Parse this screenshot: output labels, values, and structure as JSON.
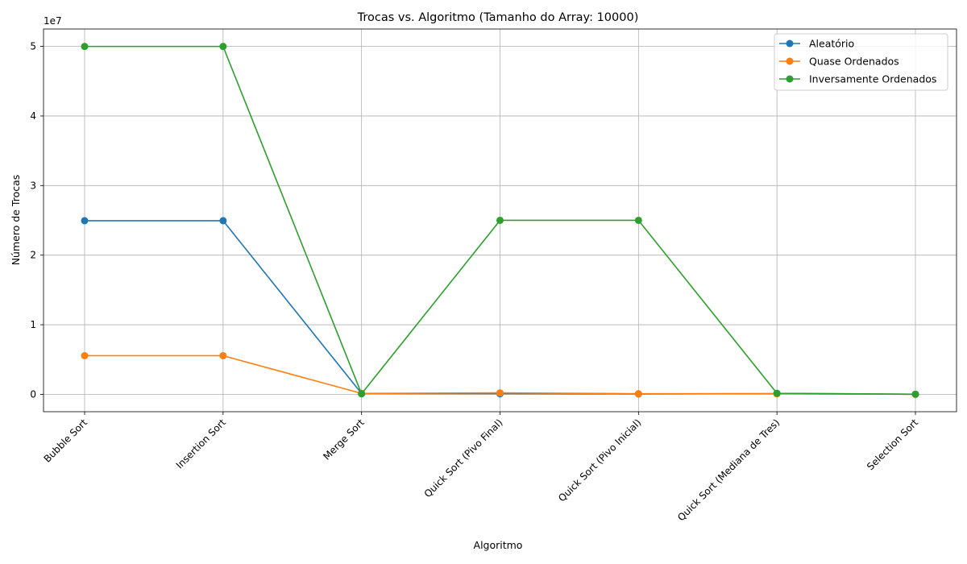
{
  "chart_data": {
    "type": "line",
    "title": "Trocas vs. Algoritmo (Tamanho do Array: 10000)",
    "xlabel": "Algoritmo",
    "ylabel": "Número de Trocas",
    "y_offset_label": "1e7",
    "categories": [
      "Bubble Sort",
      "Insertion Sort",
      "Merge Sort",
      "Quick Sort (Pivo Final)",
      "Quick Sort (Pivo Inicial)",
      "Quick Sort (Mediana de Tres)",
      "Selection Sort"
    ],
    "y_ticks": [
      0,
      1,
      2,
      3,
      4,
      5
    ],
    "y_tick_labels": [
      "0",
      "1",
      "2",
      "3",
      "4",
      "5"
    ],
    "y_scale": 10000000,
    "ylim": [
      -2500000,
      52500000
    ],
    "grid": true,
    "legend_position": "top-right",
    "series": [
      {
        "name": "Aleatório",
        "color": "#1f77b4",
        "values": [
          24950000,
          24950000,
          120000,
          80000,
          60000,
          100000,
          9990
        ]
      },
      {
        "name": "Quase Ordenados",
        "color": "#ff7f0e",
        "values": [
          5550000,
          5550000,
          130000,
          210000,
          90000,
          70000,
          9990
        ]
      },
      {
        "name": "Inversamente Ordenados",
        "color": "#2ca02c",
        "values": [
          49995000,
          49995000,
          70000,
          25005000,
          25005000,
          150000,
          9990
        ]
      }
    ]
  }
}
